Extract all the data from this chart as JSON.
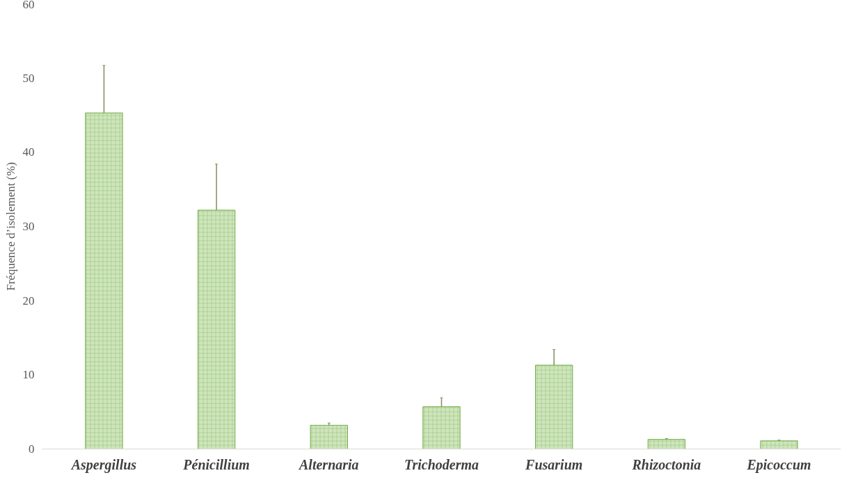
{
  "chart_data": {
    "type": "bar",
    "ylabel": "Fréquence d’isolement (%)",
    "categories": [
      "Aspergillus",
      "Pénicillium",
      "Alternaria",
      "Trichoderma",
      "Fusarium",
      "Rhizoctonia",
      "Epicoccum"
    ],
    "values": [
      45.3,
      32.2,
      3.2,
      5.7,
      11.3,
      1.3,
      1.1
    ],
    "errors": [
      6.4,
      6.2,
      0.3,
      1.2,
      2.1,
      0.1,
      0.1
    ],
    "color": "#cfe5bd",
    "ylim": [
      0,
      60
    ],
    "yticks": [
      0,
      10,
      20,
      30,
      40,
      50,
      60
    ],
    "grid": false
  }
}
